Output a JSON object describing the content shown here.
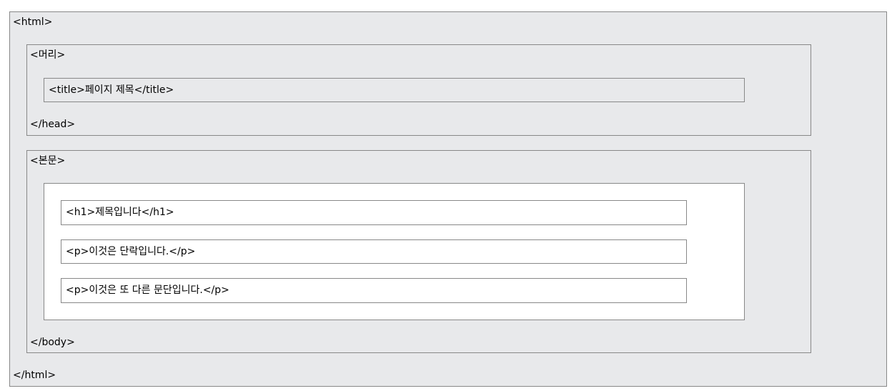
{
  "html_open": "<html>",
  "html_close": "</html>",
  "head_open": "<머리>",
  "head_close": "</head>",
  "title_element": "<title>페이지 제목</title>",
  "body_open": "<본문>",
  "body_close": "</body>",
  "body_elements": [
    "<h1>제목입니다</h1>",
    "<p>이것은 단락입니다.</p>",
    "<p>이것은 또 다른 문단입니다.</p>"
  ]
}
